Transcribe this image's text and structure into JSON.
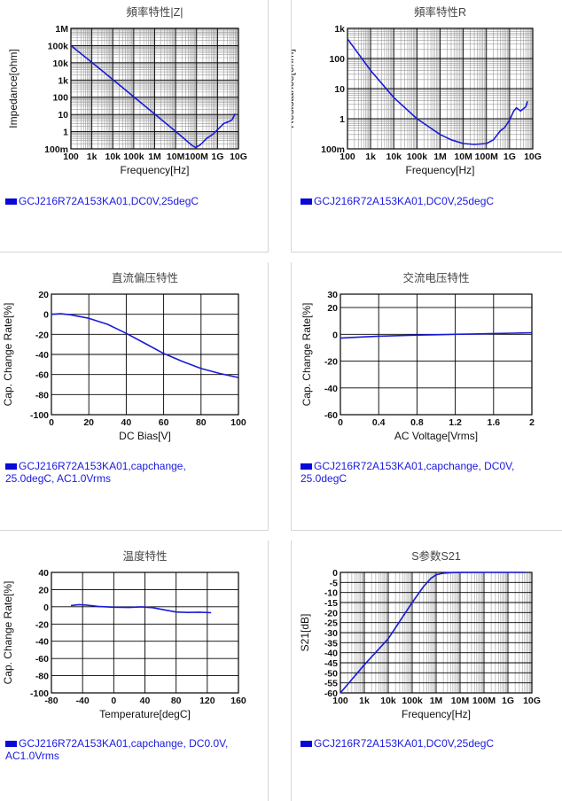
{
  "colors": {
    "line": "#1a1ad8",
    "grid_major": "#000000",
    "grid_minor": "#9a9a9a",
    "legend_text": "#1a1adf"
  },
  "chart_data": [
    {
      "id": "z",
      "type": "line",
      "title": "頻率特性|Z|",
      "xlabel": "Frequency[Hz]",
      "ylabel": "Impedance[ohm]",
      "xscale": "log",
      "yscale": "log",
      "xlim": [
        100,
        10000000000
      ],
      "ylim": [
        0.1,
        1000000
      ],
      "xticks": [
        100,
        1000,
        10000,
        100000,
        1000000,
        10000000,
        100000000,
        1000000000,
        10000000000
      ],
      "xticklabels": [
        "100",
        "1k",
        "10k",
        "100k",
        "1M",
        "10M",
        "100M",
        "1G",
        "10G"
      ],
      "yticks": [
        0.1,
        1,
        10,
        100,
        1000,
        10000,
        100000,
        1000000
      ],
      "yticklabels": [
        "100m",
        "1",
        "10",
        "100",
        "1k",
        "10k",
        "100k",
        "1M"
      ],
      "grid": true,
      "series": [
        {
          "name": "GCJ216R72A153KA01,DC0V,25degC",
          "x": [
            100,
            1000,
            10000,
            100000,
            1000000,
            10000000,
            30000000,
            60000000,
            90000000,
            150000000,
            300000000,
            600000000,
            1000000000,
            2000000000,
            3500000000,
            5000000000,
            7000000000
          ],
          "y": [
            100000,
            10600,
            1060,
            106,
            10.6,
            1.05,
            0.33,
            0.16,
            0.12,
            0.17,
            0.4,
            0.7,
            1.3,
            3,
            3.8,
            5,
            11
          ]
        }
      ]
    },
    {
      "id": "r",
      "type": "line",
      "title": "頻率特性R",
      "xlabel": "Frequency[Hz]",
      "ylabel": "Resistance[ohm]",
      "xscale": "log",
      "yscale": "log",
      "xlim": [
        100,
        10000000000
      ],
      "ylim": [
        0.1,
        1000
      ],
      "xticks": [
        100,
        1000,
        10000,
        100000,
        1000000,
        10000000,
        100000000,
        1000000000,
        10000000000
      ],
      "xticklabels": [
        "100",
        "1k",
        "10k",
        "100k",
        "1M",
        "10M",
        "100M",
        "1G",
        "10G"
      ],
      "yticks": [
        0.1,
        1,
        10,
        100,
        1000
      ],
      "yticklabels": [
        "100m",
        "1",
        "10",
        "100",
        "1k"
      ],
      "grid": true,
      "series": [
        {
          "name": "GCJ216R72A153KA01,DC0V,25degC",
          "x": [
            100,
            1000,
            10000,
            100000,
            1000000,
            3000000,
            10000000,
            30000000,
            100000000,
            200000000,
            400000000,
            600000000,
            1000000000,
            1500000000,
            2000000000,
            3000000000,
            5000000000,
            6000000000
          ],
          "y": [
            450,
            40,
            5,
            1,
            0.3,
            0.2,
            0.15,
            0.14,
            0.15,
            0.2,
            0.4,
            0.5,
            0.9,
            1.8,
            2.3,
            1.8,
            2.5,
            3.8
          ]
        }
      ]
    },
    {
      "id": "dcbias",
      "type": "line",
      "title": "直流偏压特性",
      "xlabel": "DC Bias[V]",
      "ylabel": "Cap. Change Rate[%]",
      "xlim": [
        0,
        100
      ],
      "ylim": [
        -100,
        20
      ],
      "xticks": [
        0,
        20,
        40,
        60,
        80,
        100
      ],
      "xticklabels": [
        "0",
        "20",
        "40",
        "60",
        "80",
        "100"
      ],
      "yticks": [
        -100,
        -80,
        -60,
        -40,
        -20,
        0,
        20
      ],
      "yticklabels": [
        "-100",
        "-80",
        "-60",
        "-40",
        "-20",
        "0",
        "20"
      ],
      "grid": true,
      "series": [
        {
          "name": "GCJ216R72A153KA01,capchange, 25.0degC, AC1.0Vrms",
          "x": [
            0,
            5,
            10,
            20,
            30,
            40,
            50,
            60,
            70,
            80,
            90,
            100
          ],
          "y": [
            0,
            0.5,
            -0.5,
            -4,
            -10,
            -19,
            -29,
            -39,
            -47,
            -54,
            -59,
            -63
          ]
        }
      ]
    },
    {
      "id": "acvolt",
      "type": "line",
      "title": "交流电压特性",
      "xlabel": "AC Voltage[Vrms]",
      "ylabel": "Cap. Change Rate[%]",
      "xlim": [
        0,
        2
      ],
      "ylim": [
        -60,
        30
      ],
      "xticks": [
        0,
        0.4,
        0.8,
        1.2,
        1.6,
        2
      ],
      "xticklabels": [
        "0",
        "0.4",
        "0.8",
        "1.2",
        "1.6",
        "2"
      ],
      "yticks": [
        -60,
        -40,
        -20,
        0,
        20,
        30
      ],
      "yticklabels": [
        "-60",
        "-40",
        "-20",
        "0",
        "20",
        "30"
      ],
      "grid": true,
      "series": [
        {
          "name": "GCJ216R72A153KA01,capchange, DC0V, 25.0degC",
          "x": [
            0,
            0.2,
            0.4,
            0.6,
            0.8,
            1.0,
            1.2,
            1.4,
            1.6,
            1.8,
            2.0
          ],
          "y": [
            -2.8,
            -2,
            -1.4,
            -1,
            -0.6,
            -0.3,
            0,
            0.3,
            0.6,
            0.9,
            1.2
          ]
        }
      ]
    },
    {
      "id": "temp",
      "type": "line",
      "title": "温度特性",
      "xlabel": "Temperature[degC]",
      "ylabel": "Cap. Change Rate[%]",
      "xlim": [
        -80,
        160
      ],
      "ylim": [
        -100,
        40
      ],
      "xticks": [
        -80,
        -40,
        0,
        40,
        80,
        120,
        160
      ],
      "xticklabels": [
        "-80",
        "-40",
        "0",
        "40",
        "80",
        "120",
        "160"
      ],
      "yticks": [
        -100,
        -80,
        -60,
        -40,
        -20,
        0,
        20,
        40
      ],
      "yticklabels": [
        "-100",
        "-80",
        "-60",
        "-40",
        "-20",
        "0",
        "20",
        "40"
      ],
      "grid": true,
      "series": [
        {
          "name": "GCJ216R72A153KA01,capchange, DC0.0V, AC1.0Vrms",
          "x": [
            -55,
            -45,
            -35,
            -20,
            0,
            20,
            35,
            50,
            65,
            80,
            95,
            110,
            125
          ],
          "y": [
            1.5,
            2.5,
            2,
            0.5,
            -0.5,
            -0.8,
            0,
            -1,
            -3.5,
            -6,
            -6.5,
            -6.2,
            -6.8
          ]
        }
      ]
    },
    {
      "id": "s21",
      "type": "line",
      "title": "S参数S21",
      "xlabel": "Frequency[Hz]",
      "ylabel": "S21[dB]",
      "xscale": "log",
      "xlim": [
        100,
        10000000000
      ],
      "ylim": [
        -60,
        0
      ],
      "xticks": [
        100,
        1000,
        10000,
        100000,
        1000000,
        10000000,
        100000000,
        1000000000,
        10000000000
      ],
      "xticklabels": [
        "100",
        "1k",
        "10k",
        "100k",
        "1M",
        "10M",
        "100M",
        "1G",
        "10G"
      ],
      "yticks": [
        -60,
        -55,
        -50,
        -45,
        -40,
        -35,
        -30,
        -25,
        -20,
        -15,
        -10,
        -5,
        0
      ],
      "yticklabels": [
        "-60",
        "-55",
        "-50",
        "-45",
        "-40",
        "-35",
        "-30",
        "-25",
        "-20",
        "-15",
        "-10",
        "-5",
        "0"
      ],
      "grid": true,
      "series": [
        {
          "name": "GCJ216R72A153KA01,DC0V,25degC",
          "x": [
            100,
            1000,
            10000,
            100000,
            300000,
            600000,
            1000000,
            2000000,
            5000000,
            10000000,
            100000000,
            1000000000,
            5000000000
          ],
          "y": [
            -60,
            -46,
            -33,
            -15,
            -7,
            -3,
            -1.2,
            -0.4,
            -0.1,
            -0.05,
            0,
            0,
            0
          ]
        }
      ]
    }
  ]
}
